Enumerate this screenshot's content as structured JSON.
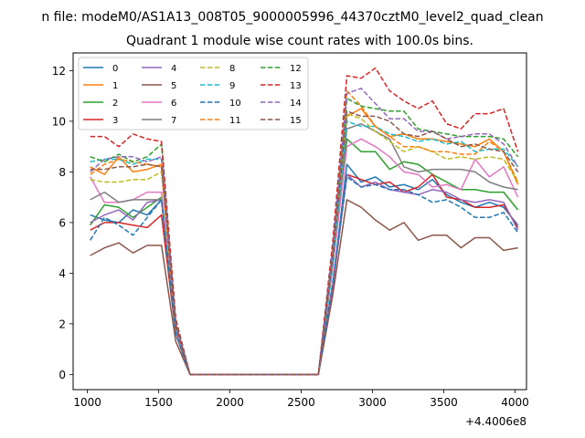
{
  "chart_data": {
    "type": "line",
    "suptitle": "n file: modeM0/AS1A13_008T05_9000005996_44370cztM0_level2_quad_clean",
    "title": "Quadrant 1 module wise count rates with 100.0s bins.",
    "xlabel": "",
    "ylabel": "",
    "x_offset_label": "+4.4006e8",
    "xlim": [
      900,
      4080
    ],
    "ylim": [
      -0.6,
      12.7
    ],
    "x_ticks": [
      1000,
      1500,
      2000,
      2500,
      3000,
      3500,
      4000
    ],
    "y_ticks": [
      0,
      2,
      4,
      6,
      8,
      10,
      12
    ],
    "x_tick_labels": [
      "1000",
      "1500",
      "2000",
      "2500",
      "3000",
      "3500",
      "4000"
    ],
    "y_tick_labels": [
      "0",
      "2",
      "4",
      "6",
      "8",
      "10",
      "12"
    ],
    "grid": false,
    "legend_position": "top-left",
    "x": [
      1020,
      1120,
      1220,
      1320,
      1420,
      1520,
      1620,
      1720,
      1820,
      1920,
      2020,
      2120,
      2220,
      2320,
      2420,
      2520,
      2620,
      2720,
      2820,
      2920,
      3020,
      3120,
      3220,
      3320,
      3420,
      3520,
      3620,
      3720,
      3820,
      3920,
      4020
    ],
    "series": [
      {
        "name": "0",
        "color": "#1f77b4",
        "dash": false,
        "values": [
          6.3,
          6.1,
          6.0,
          6.5,
          6.3,
          6.9,
          1.8,
          0,
          0,
          0,
          0,
          0,
          0,
          0,
          0,
          0,
          0,
          3.5,
          8.3,
          7.6,
          7.8,
          7.4,
          7.5,
          7.3,
          7.7,
          7.1,
          6.8,
          6.6,
          6.8,
          6.6,
          5.9
        ]
      },
      {
        "name": "1",
        "color": "#ff7f0e",
        "dash": false,
        "values": [
          8.2,
          7.9,
          8.6,
          8.0,
          8.1,
          8.3,
          2.0,
          0,
          0,
          0,
          0,
          0,
          0,
          0,
          0,
          0,
          0,
          4.5,
          10.2,
          10.5,
          9.8,
          9.4,
          9.5,
          9.3,
          9.3,
          9.2,
          9.1,
          9.0,
          9.3,
          8.8,
          7.5
        ]
      },
      {
        "name": "2",
        "color": "#2ca02c",
        "dash": false,
        "values": [
          5.9,
          6.7,
          6.6,
          6.2,
          6.6,
          7.0,
          1.7,
          0,
          0,
          0,
          0,
          0,
          0,
          0,
          0,
          0,
          0,
          4.2,
          9.3,
          8.8,
          8.8,
          8.1,
          8.4,
          8.3,
          7.9,
          7.6,
          7.3,
          7.3,
          7.2,
          7.2,
          6.5
        ]
      },
      {
        "name": "3",
        "color": "#d62728",
        "dash": false,
        "values": [
          5.7,
          6.0,
          6.0,
          5.9,
          5.8,
          6.3,
          1.6,
          0,
          0,
          0,
          0,
          0,
          0,
          0,
          0,
          0,
          0,
          3.4,
          7.9,
          7.7,
          7.5,
          7.6,
          7.2,
          7.4,
          7.9,
          7.0,
          6.9,
          6.6,
          6.6,
          6.7,
          5.8
        ]
      },
      {
        "name": "4",
        "color": "#9467bd",
        "dash": false,
        "values": [
          6.0,
          6.3,
          6.5,
          6.1,
          6.8,
          6.9,
          1.7,
          0,
          0,
          0,
          0,
          0,
          0,
          0,
          0,
          0,
          0,
          3.5,
          7.9,
          7.4,
          7.6,
          7.3,
          7.2,
          7.1,
          7.3,
          7.2,
          6.9,
          6.8,
          6.9,
          6.8,
          5.7
        ]
      },
      {
        "name": "5",
        "color": "#8c564b",
        "dash": false,
        "values": [
          4.7,
          5.0,
          5.2,
          4.8,
          5.1,
          5.1,
          1.3,
          0,
          0,
          0,
          0,
          0,
          0,
          0,
          0,
          0,
          0,
          3.1,
          6.9,
          6.6,
          6.1,
          5.7,
          6.0,
          5.3,
          5.5,
          5.5,
          5.0,
          5.4,
          5.4,
          4.9,
          5.0
        ]
      },
      {
        "name": "6",
        "color": "#e377c2",
        "dash": false,
        "values": [
          7.8,
          6.8,
          6.8,
          6.9,
          7.2,
          7.2,
          1.7,
          0,
          0,
          0,
          0,
          0,
          0,
          0,
          0,
          0,
          0,
          4.2,
          9.0,
          9.3,
          9.0,
          8.6,
          8.0,
          7.9,
          7.4,
          7.5,
          7.3,
          8.5,
          7.8,
          8.2,
          7.0
        ]
      },
      {
        "name": "7",
        "color": "#7f7f7f",
        "dash": false,
        "values": [
          6.9,
          7.2,
          6.8,
          6.9,
          6.9,
          6.9,
          1.6,
          0,
          0,
          0,
          0,
          0,
          0,
          0,
          0,
          0,
          0,
          4.4,
          9.7,
          9.9,
          9.6,
          9.3,
          8.2,
          8.0,
          8.1,
          8.1,
          8.1,
          8.0,
          7.6,
          7.4,
          7.3
        ]
      },
      {
        "name": "8",
        "color": "#bcbd22",
        "dash": true,
        "values": [
          7.7,
          7.6,
          7.6,
          7.7,
          7.7,
          8.0,
          1.9,
          0,
          0,
          0,
          0,
          0,
          0,
          0,
          0,
          0,
          0,
          4.6,
          10.3,
          10.1,
          9.6,
          9.2,
          8.8,
          9.0,
          8.8,
          8.5,
          8.6,
          8.5,
          8.6,
          8.5,
          7.6
        ]
      },
      {
        "name": "9",
        "color": "#17becf",
        "dash": true,
        "values": [
          8.4,
          8.5,
          8.5,
          8.3,
          8.5,
          8.5,
          2.0,
          0,
          0,
          0,
          0,
          0,
          0,
          0,
          0,
          0,
          0,
          4.4,
          10.0,
          9.8,
          9.8,
          9.5,
          9.4,
          9.2,
          9.3,
          9.1,
          9.2,
          8.8,
          8.9,
          8.9,
          8.2
        ]
      },
      {
        "name": "10",
        "color": "#1f77b4",
        "dash": true,
        "values": [
          5.3,
          6.2,
          5.9,
          5.5,
          6.2,
          6.9,
          1.6,
          0,
          0,
          0,
          0,
          0,
          0,
          0,
          0,
          0,
          0,
          3.6,
          7.8,
          7.4,
          7.5,
          7.3,
          7.3,
          7.1,
          6.8,
          6.9,
          6.6,
          6.2,
          6.2,
          6.4,
          5.6
        ]
      },
      {
        "name": "11",
        "color": "#ff7f0e",
        "dash": true,
        "values": [
          7.9,
          8.3,
          8.5,
          8.4,
          8.3,
          8.2,
          2.0,
          0,
          0,
          0,
          0,
          0,
          0,
          0,
          0,
          0,
          0,
          5.0,
          11.2,
          10.6,
          9.8,
          9.4,
          9.0,
          9.0,
          8.8,
          8.8,
          8.7,
          8.7,
          9.2,
          8.8,
          7.6
        ]
      },
      {
        "name": "12",
        "color": "#2ca02c",
        "dash": true,
        "values": [
          8.6,
          8.4,
          8.7,
          8.4,
          8.6,
          9.1,
          2.0,
          0,
          0,
          0,
          0,
          0,
          0,
          0,
          0,
          0,
          0,
          4.9,
          10.9,
          10.6,
          10.5,
          10.4,
          10.4,
          9.7,
          9.6,
          9.5,
          9.4,
          9.4,
          9.4,
          9.3,
          8.6
        ]
      },
      {
        "name": "13",
        "color": "#d62728",
        "dash": true,
        "values": [
          9.4,
          9.4,
          9.0,
          9.5,
          9.3,
          9.2,
          2.2,
          0,
          0,
          0,
          0,
          0,
          0,
          0,
          0,
          0,
          0,
          5.2,
          11.8,
          11.7,
          12.1,
          11.2,
          10.8,
          10.5,
          10.8,
          9.9,
          9.7,
          10.3,
          10.3,
          10.5,
          8.8
        ]
      },
      {
        "name": "14",
        "color": "#9467bd",
        "dash": true,
        "values": [
          8.0,
          8.5,
          8.6,
          8.6,
          8.4,
          8.6,
          2.0,
          0,
          0,
          0,
          0,
          0,
          0,
          0,
          0,
          0,
          0,
          4.9,
          11.1,
          11.3,
          10.7,
          10.1,
          10.1,
          9.6,
          9.6,
          9.3,
          9.4,
          9.5,
          9.5,
          9.1,
          8.2
        ]
      },
      {
        "name": "15",
        "color": "#8c564b",
        "dash": true,
        "values": [
          8.1,
          8.1,
          8.2,
          8.2,
          8.3,
          8.2,
          1.9,
          0,
          0,
          0,
          0,
          0,
          0,
          0,
          0,
          0,
          0,
          4.6,
          10.4,
          10.2,
          10.2,
          10.0,
          9.5,
          9.4,
          9.6,
          9.3,
          9.0,
          9.1,
          8.9,
          8.8,
          8.0
        ]
      }
    ]
  }
}
